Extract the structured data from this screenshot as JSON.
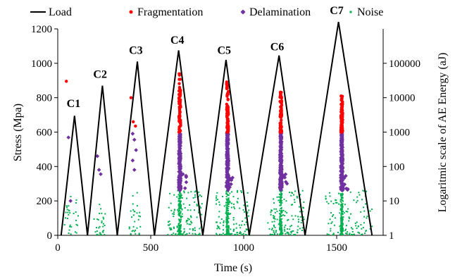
{
  "chart_data": {
    "type": "scatter",
    "title": "",
    "xlabel": "Time (s)",
    "ylabel": "Stress (Mpa)",
    "y2label": "Logaritmic scale of AE Energy (aJ)",
    "xlim": [
      0,
      1750
    ],
    "ylim": [
      0,
      1200
    ],
    "y2lim_log": [
      1,
      1000000
    ],
    "y2scale": "log",
    "grid": false,
    "legend_position": "top",
    "xticks": [
      "0",
      "500",
      "1000",
      "1500"
    ],
    "yticks": [
      "0",
      "200",
      "400",
      "600",
      "800",
      "1000",
      "1200"
    ],
    "y2ticks": [
      "1",
      "10",
      "100",
      "1000",
      "10000",
      "100000"
    ],
    "load_series": {
      "name": "Load",
      "color": "#000000",
      "x": [
        18,
        90,
        160,
        240,
        320,
        428,
        520,
        650,
        780,
        905,
        1030,
        1190,
        1330,
        1510,
        1690
      ],
      "y": [
        0,
        695,
        0,
        870,
        0,
        1010,
        0,
        1075,
        0,
        1020,
        0,
        1045,
        0,
        1240,
        0
      ]
    },
    "cycle_labels": [
      {
        "text": "C1",
        "x": 85,
        "y": 745
      },
      {
        "text": "C2",
        "x": 228,
        "y": 915
      },
      {
        "text": "C3",
        "x": 420,
        "y": 1055
      },
      {
        "text": "C4",
        "x": 643,
        "y": 1115
      },
      {
        "text": "C5",
        "x": 895,
        "y": 1055
      },
      {
        "text": "C6",
        "x": 1180,
        "y": 1075
      },
      {
        "text": "C7",
        "x": 1500,
        "y": 1285
      }
    ],
    "legend": [
      {
        "label": "Load",
        "marker": "line",
        "color": "#000000"
      },
      {
        "label": "Fragmentation",
        "marker": "dot",
        "color": "#ff0000"
      },
      {
        "label": "Delamination",
        "marker": "diamond",
        "color": "#7030a0"
      },
      {
        "label": "Noise",
        "marker": "small-dot",
        "color": "#00b050"
      }
    ],
    "ae_clusters": [
      {
        "cycle": "C1",
        "x_range": [
          35,
          110
        ],
        "frag_energy": [
          30000
        ],
        "delam_energy": [
          700,
          10
        ],
        "noise_energy_max": 15
      },
      {
        "cycle": "C2",
        "x_range": [
          195,
          255
        ],
        "frag_energy": [],
        "delam_energy": [
          200,
          80,
          60
        ],
        "noise_energy_max": 8
      },
      {
        "cycle": "C3",
        "x_range": [
          385,
          445
        ],
        "frag_energy": [
          10000,
          2000,
          1500
        ],
        "delam_energy": [
          900,
          600,
          300,
          150,
          80
        ],
        "noise_energy_max": 20
      },
      {
        "cycle": "C4",
        "x_range": [
          590,
          780
        ],
        "frag_energy_range": [
          1000,
          50000
        ],
        "delam_energy_range": [
          20,
          1000
        ],
        "noise_energy_max": 20
      },
      {
        "cycle": "C5",
        "x_range": [
          850,
          1030
        ],
        "frag_energy_range": [
          1000,
          30000
        ],
        "delam_energy_range": [
          20,
          1000
        ],
        "noise_energy_max": 20
      },
      {
        "cycle": "C6",
        "x_range": [
          1130,
          1330
        ],
        "frag_energy_range": [
          1000,
          15000
        ],
        "delam_energy_range": [
          20,
          1000
        ],
        "noise_energy_max": 20
      },
      {
        "cycle": "C7",
        "x_range": [
          1440,
          1690
        ],
        "frag_energy_range": [
          1000,
          12000
        ],
        "delam_energy_range": [
          20,
          1000
        ],
        "noise_energy_max": 20
      }
    ]
  }
}
